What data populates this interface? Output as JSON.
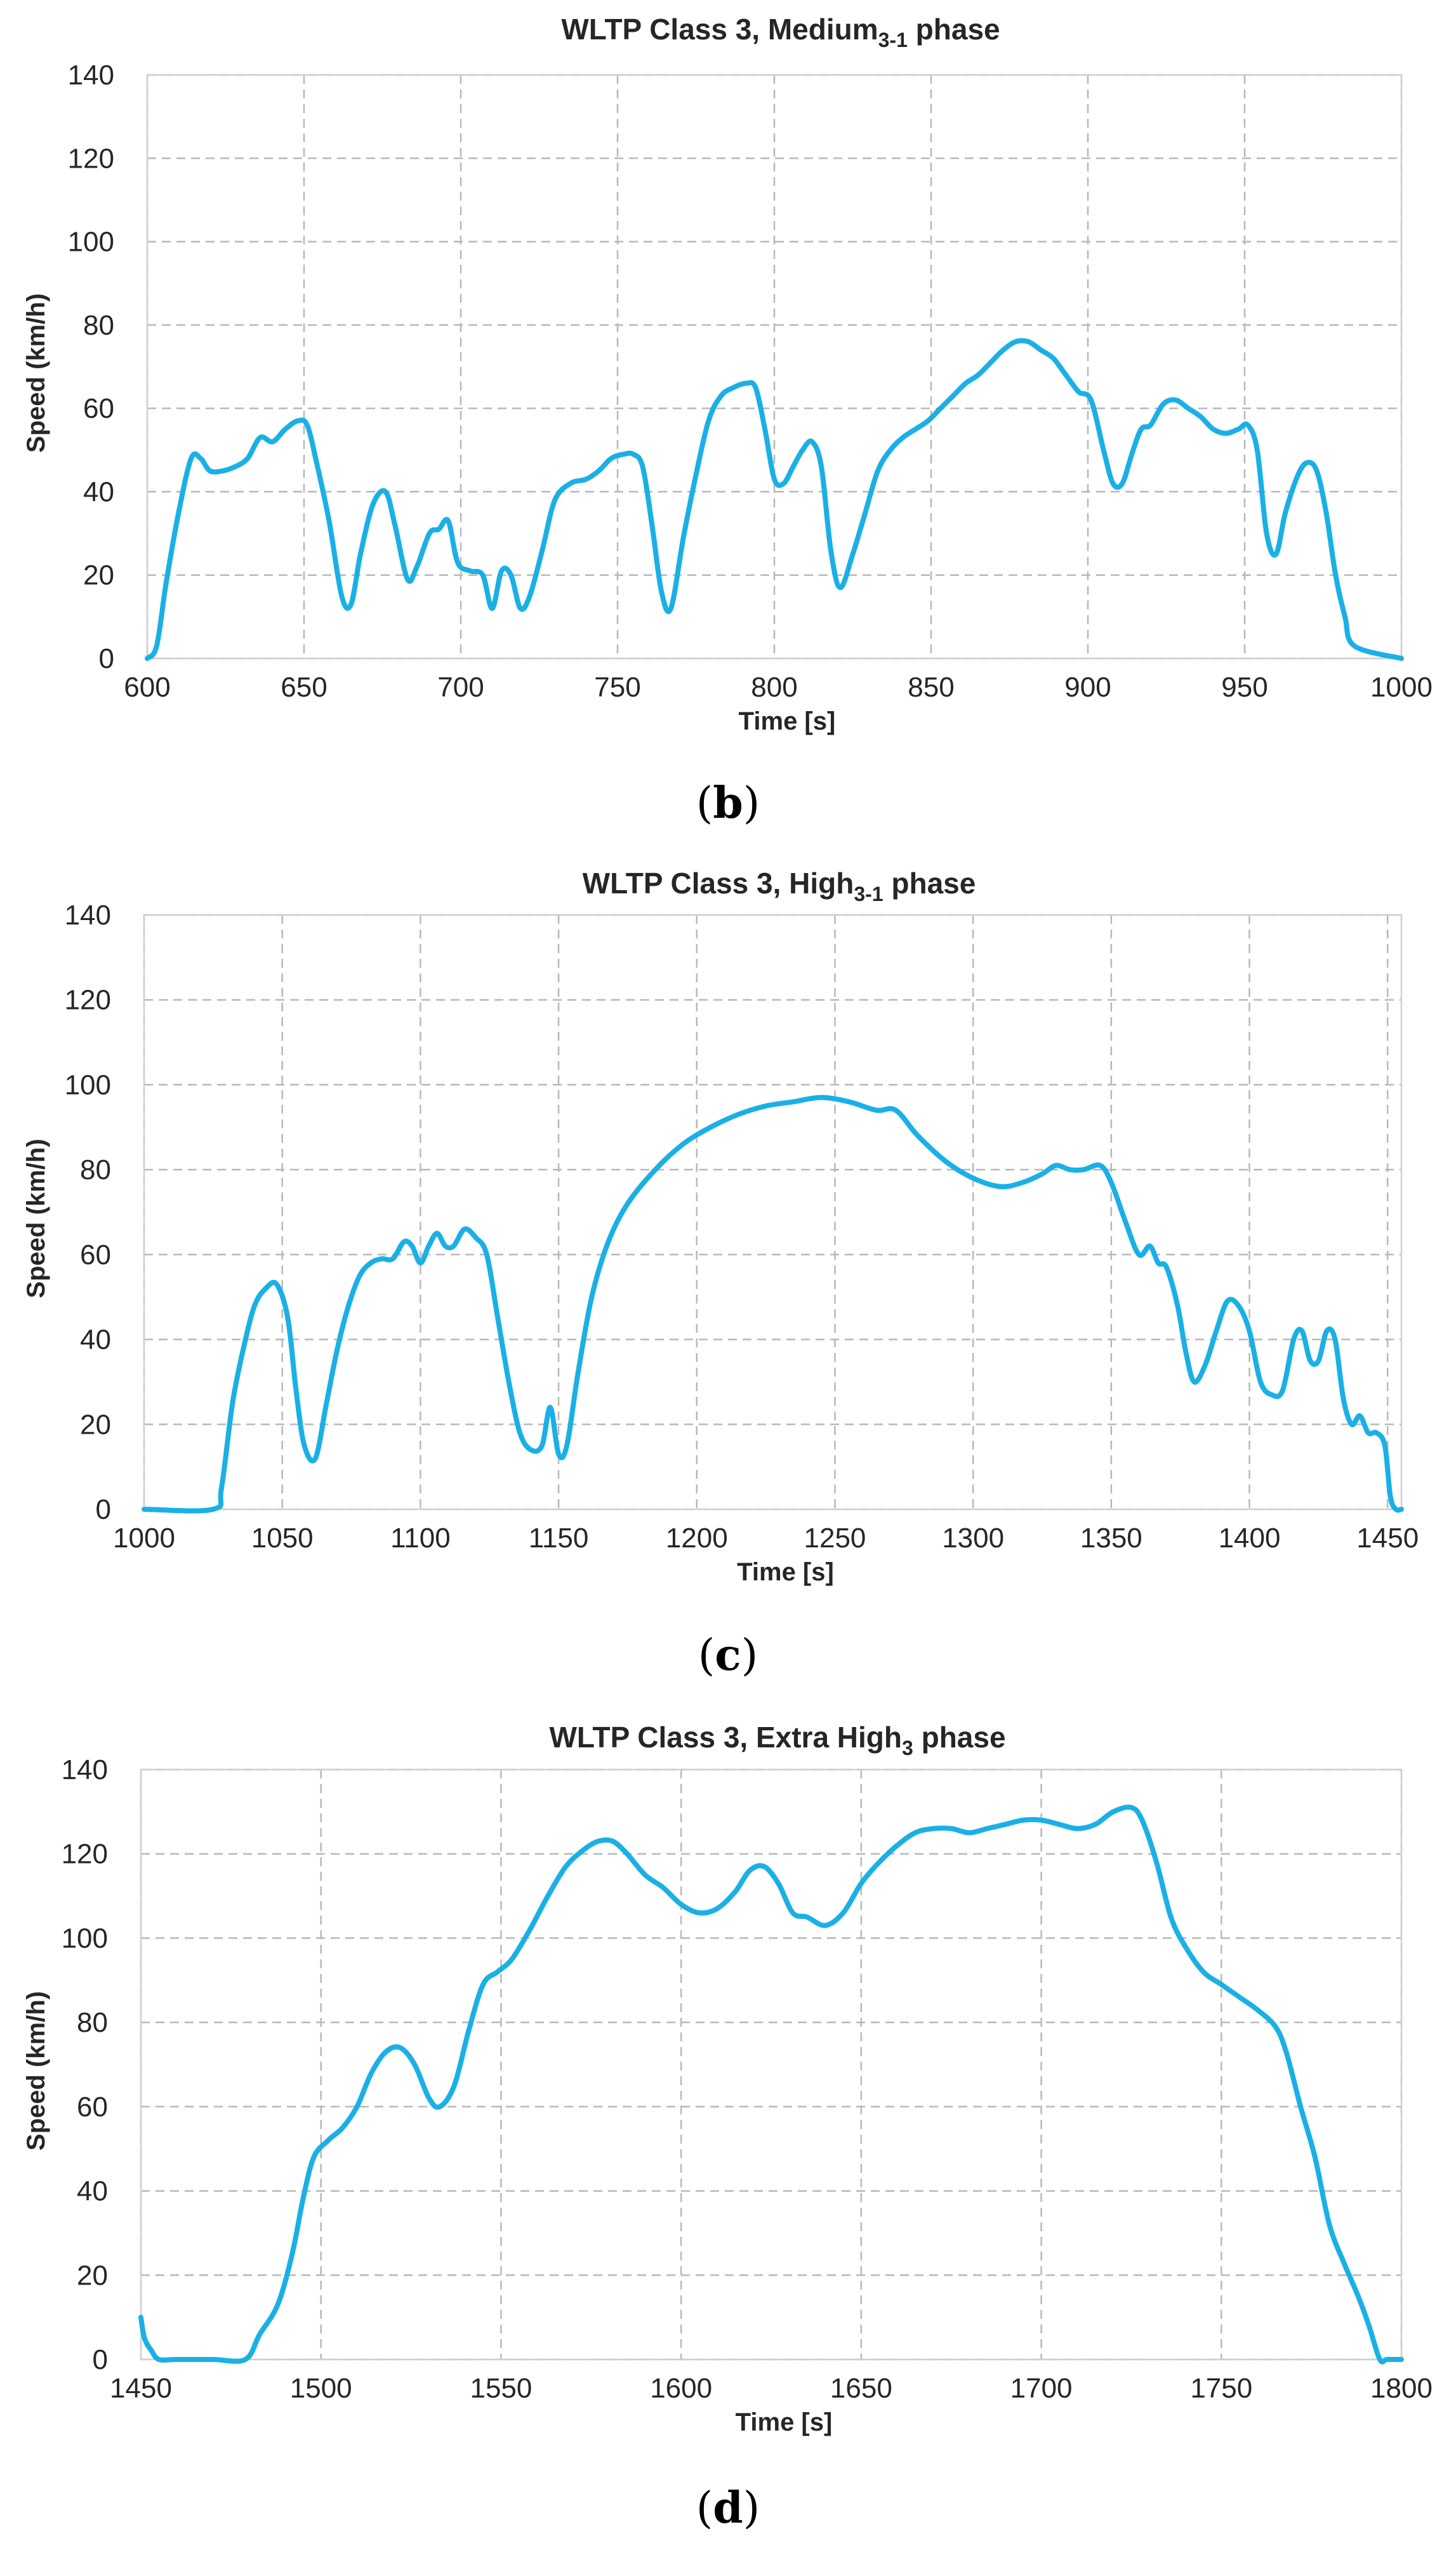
{
  "chart_data": [
    {
      "type": "line",
      "title_main": "WLTP Class 3, Medium",
      "title_sub": "3-1",
      "title_end": " phase",
      "xlabel": "Time [s]",
      "ylabel": "Speed (km/h)",
      "xlim": [
        600,
        1000
      ],
      "ylim": [
        0,
        140
      ],
      "xticks": [
        600,
        650,
        700,
        750,
        800,
        850,
        900,
        950,
        1000
      ],
      "yticks": [
        0,
        20,
        40,
        60,
        80,
        100,
        120,
        140
      ],
      "grid": true,
      "caption": "b",
      "series": [
        {
          "name": "Speed",
          "color": "#1ab0e6",
          "x": [
            600,
            603,
            606,
            610,
            614,
            617,
            620,
            624,
            628,
            632,
            636,
            640,
            644,
            648,
            651,
            654,
            658,
            662,
            665,
            668,
            672,
            676,
            679,
            683,
            686,
            690,
            693,
            696,
            699,
            703,
            707,
            710,
            713,
            716,
            719,
            722,
            726,
            730,
            735,
            740,
            744,
            748,
            752,
            755,
            758,
            761,
            764,
            767,
            771,
            775,
            779,
            783,
            787,
            791,
            794,
            797,
            800,
            803,
            806,
            809,
            812,
            815,
            818,
            821,
            825,
            829,
            833,
            837,
            841,
            845,
            849,
            853,
            857,
            861,
            865,
            869,
            873,
            877,
            881,
            885,
            889,
            893,
            897,
            901,
            905,
            908,
            911,
            914,
            917,
            920,
            924,
            928,
            932,
            936,
            940,
            944,
            948,
            951,
            954,
            957,
            960,
            963,
            967,
            970,
            973,
            976,
            979,
            982,
            985,
            1000
          ],
          "y": [
            0,
            3,
            18,
            35,
            48,
            48,
            45,
            45,
            46,
            48,
            53,
            52,
            55,
            57,
            56,
            47,
            33,
            15,
            13,
            25,
            37,
            40,
            32,
            19,
            22,
            30,
            31,
            33,
            23,
            21,
            20,
            12,
            21,
            20,
            12,
            15,
            26,
            38,
            42,
            43,
            45,
            48,
            49,
            49,
            46,
            32,
            16,
            12,
            29,
            44,
            57,
            63,
            65,
            66,
            65,
            55,
            43,
            42,
            46,
            50,
            52,
            46,
            26,
            17,
            25,
            35,
            45,
            50,
            53,
            55,
            57,
            60,
            63,
            66,
            68,
            71,
            74,
            76,
            76,
            74,
            72,
            68,
            64,
            62,
            50,
            42,
            42,
            49,
            55,
            56,
            61,
            62,
            60,
            58,
            55,
            54,
            55,
            56,
            50,
            30,
            25,
            35,
            44,
            47,
            45,
            35,
            20,
            10,
            3,
            0
          ]
        }
      ]
    },
    {
      "type": "line",
      "title_main": "WLTP Class 3, High",
      "title_sub": "3-1",
      "title_end": " phase",
      "xlabel": "Time [s]",
      "ylabel": "Speed (km/h)",
      "xlim": [
        1000,
        1455
      ],
      "ylim": [
        0,
        140
      ],
      "xticks": [
        1000,
        1050,
        1100,
        1150,
        1200,
        1250,
        1300,
        1350,
        1400,
        1450
      ],
      "yticks": [
        0,
        20,
        40,
        60,
        80,
        100,
        120,
        140
      ],
      "grid": true,
      "caption": "c",
      "series": [
        {
          "name": "Speed",
          "color": "#1ab0e6",
          "x": [
            1000,
            1025,
            1028,
            1032,
            1036,
            1040,
            1044,
            1048,
            1052,
            1055,
            1058,
            1062,
            1066,
            1070,
            1074,
            1078,
            1082,
            1086,
            1090,
            1094,
            1097,
            1100,
            1103,
            1106,
            1109,
            1112,
            1116,
            1120,
            1124,
            1128,
            1132,
            1136,
            1140,
            1144,
            1147,
            1150,
            1153,
            1157,
            1162,
            1168,
            1175,
            1185,
            1195,
            1205,
            1215,
            1225,
            1235,
            1245,
            1255,
            1265,
            1272,
            1280,
            1290,
            1300,
            1310,
            1318,
            1325,
            1330,
            1335,
            1340,
            1346,
            1350,
            1355,
            1360,
            1364,
            1367,
            1370,
            1374,
            1377,
            1380,
            1384,
            1388,
            1392,
            1396,
            1400,
            1404,
            1408,
            1412,
            1416,
            1419,
            1422,
            1425,
            1428,
            1431,
            1434,
            1437,
            1440,
            1443,
            1446,
            1449,
            1451,
            1453,
            1455
          ],
          "y": [
            0,
            0,
            5,
            25,
            38,
            48,
            52,
            53,
            45,
            28,
            15,
            12,
            25,
            38,
            48,
            55,
            58,
            59,
            59,
            63,
            62,
            58,
            62,
            65,
            62,
            62,
            66,
            64,
            60,
            45,
            30,
            18,
            14,
            15,
            24,
            13,
            15,
            32,
            50,
            63,
            72,
            80,
            86,
            90,
            93,
            95,
            96,
            97,
            96,
            94,
            94,
            88,
            82,
            78,
            76,
            77,
            79,
            81,
            80,
            80,
            81,
            77,
            68,
            60,
            62,
            58,
            57,
            48,
            37,
            30,
            34,
            42,
            49,
            48,
            42,
            30,
            27,
            28,
            40,
            42,
            35,
            35,
            42,
            40,
            26,
            20,
            22,
            18,
            18,
            15,
            3,
            0,
            0
          ]
        }
      ]
    },
    {
      "type": "line",
      "title_main": "WLTP Class 3, Extra High",
      "title_sub": "3",
      "title_end": " phase",
      "xlabel": "Time [s]",
      "ylabel": "Speed (km/h)",
      "xlim": [
        1450,
        1800
      ],
      "ylim": [
        0,
        140
      ],
      "xticks": [
        1450,
        1500,
        1550,
        1600,
        1650,
        1700,
        1750,
        1800
      ],
      "yticks": [
        0,
        20,
        40,
        60,
        80,
        100,
        120,
        140
      ],
      "grid": true,
      "caption": "d",
      "series": [
        {
          "name": "Speed",
          "color": "#1ab0e6",
          "x": [
            1450,
            1451,
            1453,
            1455,
            1460,
            1470,
            1479,
            1483,
            1488,
            1492,
            1495,
            1498,
            1502,
            1506,
            1510,
            1514,
            1518,
            1522,
            1526,
            1530,
            1533,
            1537,
            1541,
            1545,
            1549,
            1553,
            1558,
            1563,
            1568,
            1573,
            1577,
            1581,
            1585,
            1590,
            1595,
            1600,
            1605,
            1610,
            1615,
            1619,
            1623,
            1627,
            1631,
            1635,
            1640,
            1645,
            1650,
            1655,
            1660,
            1665,
            1670,
            1675,
            1680,
            1685,
            1690,
            1695,
            1700,
            1705,
            1710,
            1715,
            1720,
            1725,
            1728,
            1732,
            1736,
            1740,
            1745,
            1750,
            1755,
            1760,
            1765,
            1768,
            1772,
            1776,
            1780,
            1784,
            1788,
            1791,
            1794,
            1796,
            1800
          ],
          "y": [
            10,
            5,
            2,
            0,
            0,
            0,
            0,
            6,
            13,
            25,
            38,
            48,
            52,
            55,
            60,
            68,
            73,
            74,
            70,
            62,
            60,
            65,
            78,
            89,
            92,
            95,
            102,
            110,
            117,
            121,
            123,
            123,
            120,
            115,
            112,
            108,
            106,
            107,
            111,
            116,
            117,
            113,
            106,
            105,
            103,
            106,
            113,
            118,
            122,
            125,
            126,
            126,
            125,
            126,
            127,
            128,
            128,
            127,
            126,
            127,
            130,
            131,
            128,
            118,
            105,
            98,
            92,
            89,
            86,
            83,
            79,
            73,
            60,
            48,
            32,
            23,
            15,
            8,
            0,
            0,
            0
          ]
        }
      ]
    }
  ]
}
